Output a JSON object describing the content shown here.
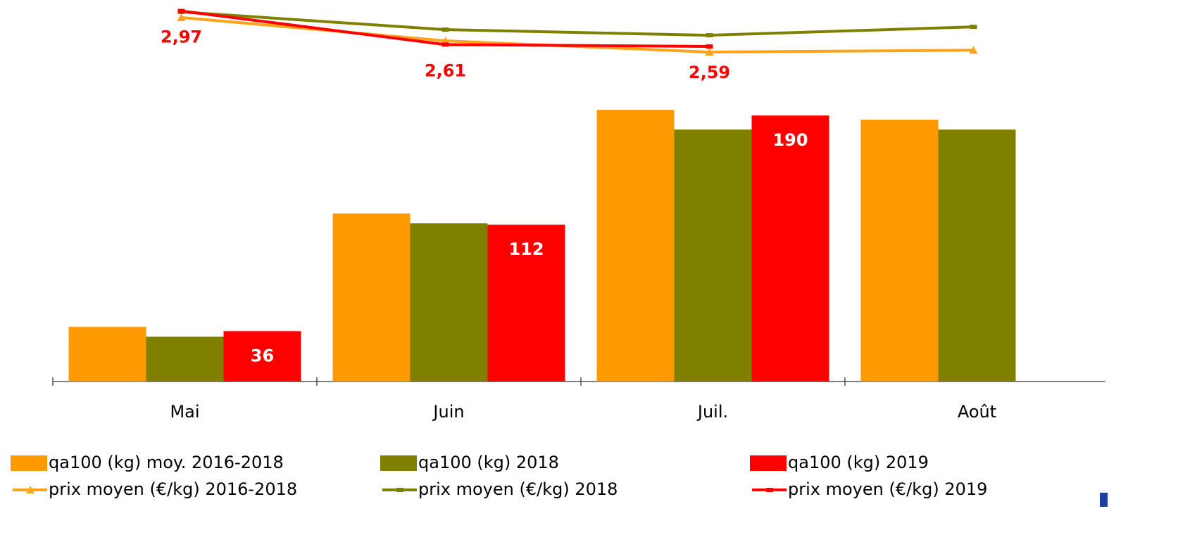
{
  "chart_data": {
    "type": "bar",
    "categories": [
      "Mai",
      "Juin",
      "Juil.",
      "Août"
    ],
    "ylim": [
      0,
      270
    ],
    "y2lim": [
      -1,
      3.05
    ],
    "series": [
      {
        "name": "qa100 (kg) moy. 2016-2018",
        "type": "bar",
        "color": "#ff9900",
        "values": [
          39,
          120,
          194,
          187
        ]
      },
      {
        "name": "qa100 (kg) 2018",
        "type": "bar",
        "color": "#808000",
        "values": [
          32,
          113,
          180,
          180
        ]
      },
      {
        "name": "qa100 (kg) 2019",
        "type": "bar",
        "color": "#ff0000",
        "values": [
          36,
          112,
          190,
          null
        ],
        "show_labels": true,
        "label_color": "#ffffff"
      },
      {
        "name": "prix moyen (€/kg) 2016-2018",
        "type": "line",
        "axis": "y2",
        "color": "#ffa31a",
        "marker": "triangle",
        "values": [
          2.9,
          2.65,
          2.53,
          2.55
        ]
      },
      {
        "name": "prix moyen (€/kg) 2018",
        "type": "line",
        "axis": "y2",
        "color": "#808000",
        "marker": "dash",
        "values": [
          2.96,
          2.77,
          2.71,
          2.8
        ]
      },
      {
        "name": "prix moyen (€/kg) 2019",
        "type": "line",
        "axis": "y2",
        "color": "#ff0000",
        "marker": "dash",
        "values": [
          2.97,
          2.61,
          2.59,
          null
        ],
        "show_labels": true,
        "label_color": "#ff0000",
        "value_labels": [
          "2,97",
          "2,61",
          "2,59",
          null
        ]
      }
    ]
  }
}
